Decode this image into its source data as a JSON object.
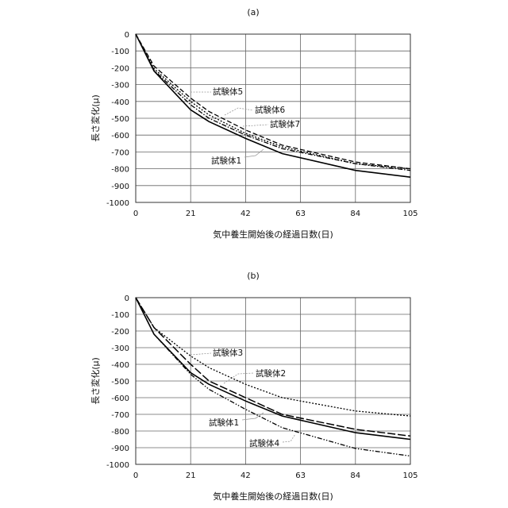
{
  "chart_data": [
    {
      "type": "line",
      "title": "(a)",
      "xlabel": "気中養生開始後の経過日数(日)",
      "ylabel": "長さ変化(μ)",
      "xlim": [
        0,
        105
      ],
      "ylim": [
        -1000,
        0
      ],
      "xticks": [
        0,
        21,
        42,
        63,
        84,
        105
      ],
      "yticks": [
        0,
        -100,
        -200,
        -300,
        -400,
        -500,
        -600,
        -700,
        -800,
        -900,
        -1000
      ],
      "grid": true,
      "x": [
        0,
        7,
        21,
        28,
        42,
        56,
        84,
        105
      ],
      "series": [
        {
          "name": "試験体1",
          "style": "solid",
          "values": [
            0,
            -220,
            -450,
            -520,
            -620,
            -710,
            -810,
            -850
          ]
        },
        {
          "name": "試験体5",
          "style": "dashed",
          "values": [
            0,
            -190,
            -380,
            -460,
            -570,
            -660,
            -760,
            -800
          ]
        },
        {
          "name": "試験体6",
          "style": "dotted",
          "values": [
            0,
            -205,
            -400,
            -480,
            -590,
            -670,
            -770,
            -800
          ]
        },
        {
          "name": "試験体7",
          "style": "dashdot",
          "values": [
            0,
            -215,
            -420,
            -500,
            -600,
            -680,
            -770,
            -810
          ]
        }
      ]
    },
    {
      "type": "line",
      "title": "(b)",
      "xlabel": "気中養生開始後の経過日数(日)",
      "ylabel": "長さ変化(μ)",
      "xlim": [
        0,
        105
      ],
      "ylim": [
        -1000,
        0
      ],
      "xticks": [
        0,
        21,
        42,
        63,
        84,
        105
      ],
      "yticks": [
        0,
        -100,
        -200,
        -300,
        -400,
        -500,
        -600,
        -700,
        -800,
        -900,
        -1000
      ],
      "grid": true,
      "x": [
        0,
        7,
        21,
        28,
        42,
        56,
        84,
        105
      ],
      "series": [
        {
          "name": "試験体1",
          "style": "solid",
          "values": [
            0,
            -220,
            -450,
            -520,
            -620,
            -710,
            -810,
            -850
          ]
        },
        {
          "name": "試験体2",
          "style": "longdash",
          "values": [
            0,
            -180,
            -400,
            -500,
            -600,
            -700,
            -790,
            -830
          ]
        },
        {
          "name": "試験体3",
          "style": "dotted",
          "values": [
            0,
            -180,
            -350,
            -420,
            -520,
            -600,
            -680,
            -710
          ]
        },
        {
          "name": "試験体4",
          "style": "dashdotdot",
          "values": [
            0,
            -220,
            -460,
            -550,
            -670,
            -780,
            -905,
            -950
          ]
        }
      ]
    }
  ]
}
